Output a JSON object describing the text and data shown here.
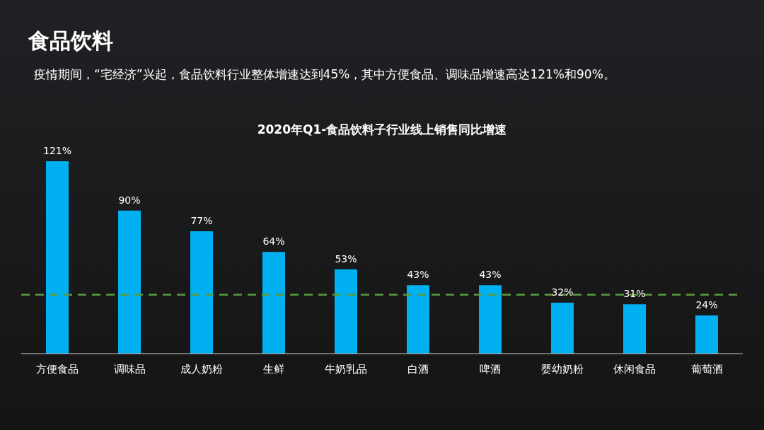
{
  "chart_data": {
    "type": "bar",
    "title": "食品饮料",
    "subtitle": "疫情期间，“宅经济”兴起，食品饮料行业整体增速达到45%，其中方便食品、调味品增速高达121%和90%。",
    "annotations": [
      "2020年Q1-食品饮料子行业线上销售同比增速"
    ],
    "categories": [
      "方便食品",
      "调味品",
      "成人奶粉",
      "生鲜",
      "牛奶乳品",
      "白酒",
      "啤酒",
      "婴幼奶粉",
      "休闲食品",
      "葡萄酒"
    ],
    "values": [
      121,
      90,
      77,
      64,
      53,
      43,
      43,
      32,
      31,
      24
    ],
    "color": "#00b0f0",
    "value_labels": [
      "121%",
      "90%",
      "77%",
      "64%",
      "53%",
      "43%",
      "43%",
      "32%",
      "31%",
      "24%"
    ],
    "ref_lines": [
      {
        "axis": "y",
        "value": 37,
        "color": "#5a9a3a",
        "line_style": "dashed"
      }
    ]
  }
}
